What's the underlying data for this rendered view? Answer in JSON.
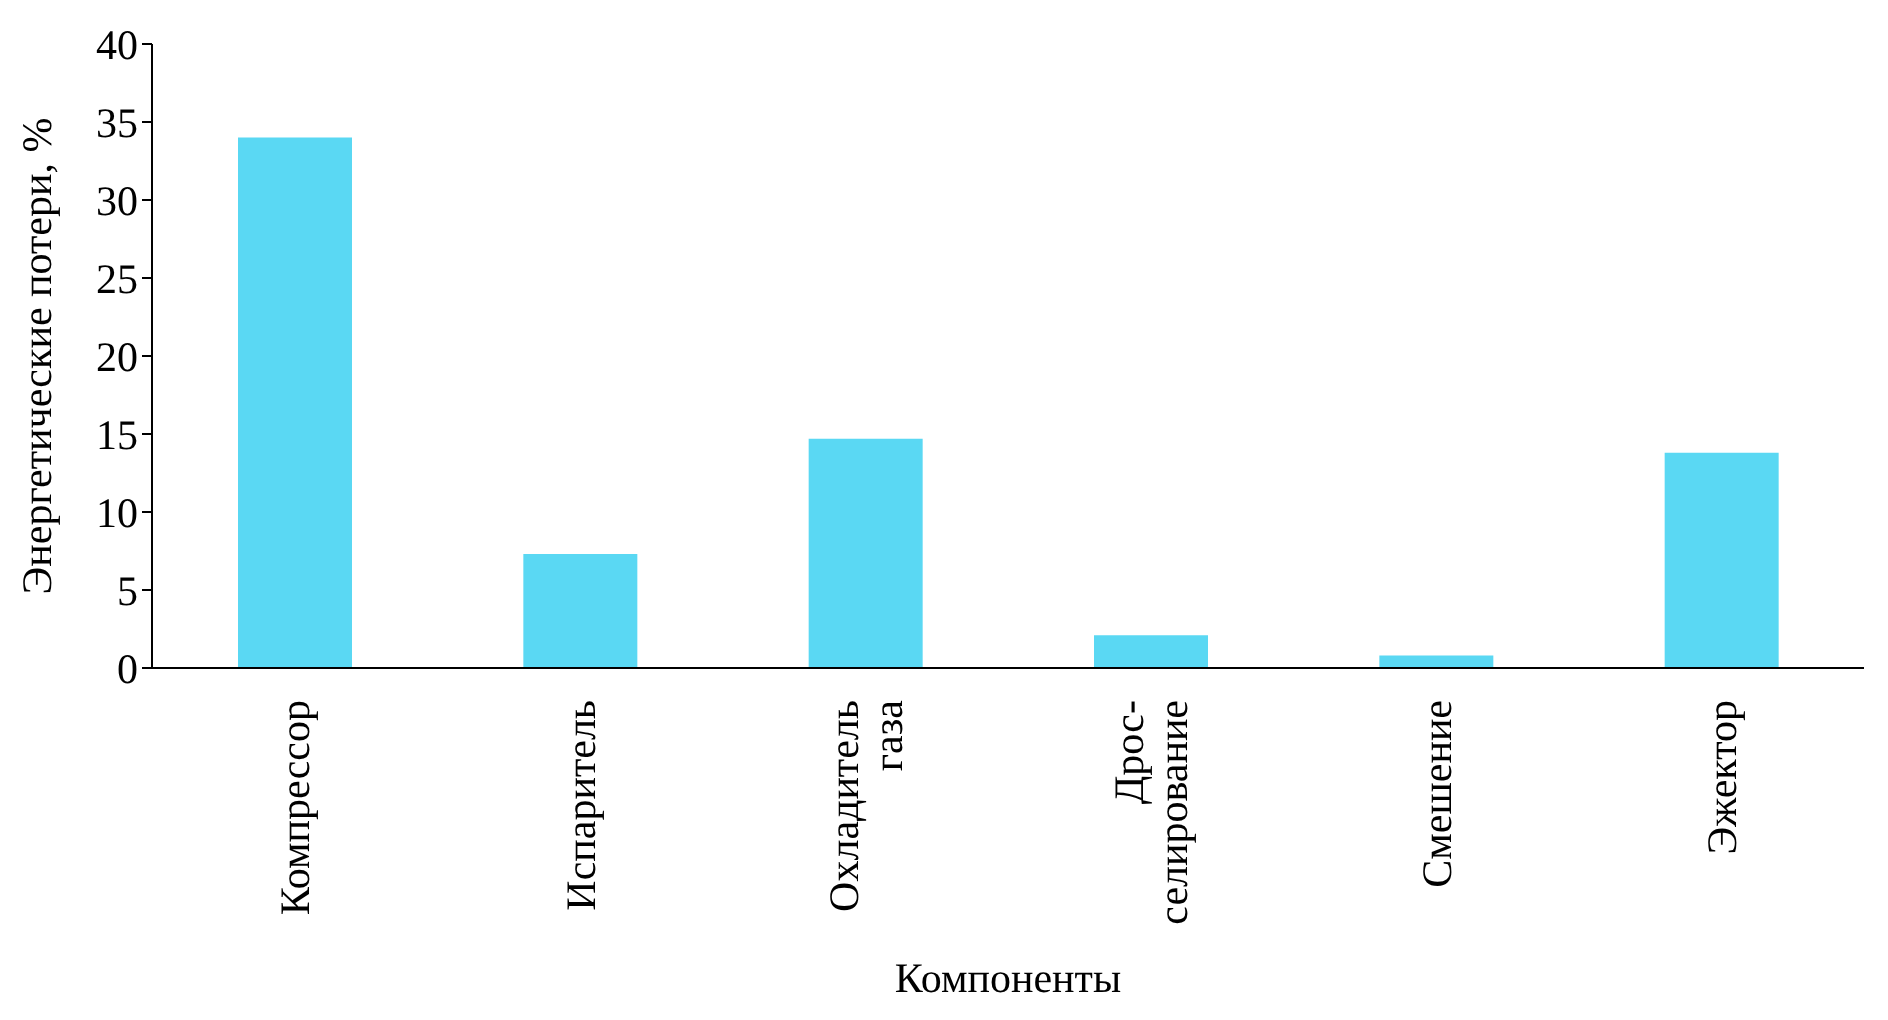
{
  "chart_data": {
    "type": "bar",
    "xlabel": "Компоненты",
    "ylabel": "Энергетические потери, %",
    "categories": [
      "Компрессор",
      "Испаритель",
      "Охладитель\nгаза",
      "Дрос-\nселирование",
      "Смешение",
      "Эжектор"
    ],
    "values": [
      34,
      7.3,
      14.7,
      2.1,
      0.8,
      13.8
    ],
    "color": "#5ad8f3",
    "ylim": [
      0,
      40
    ],
    "yticks": [
      0,
      5,
      10,
      15,
      20,
      25,
      30,
      35,
      40
    ],
    "grid": false
  }
}
